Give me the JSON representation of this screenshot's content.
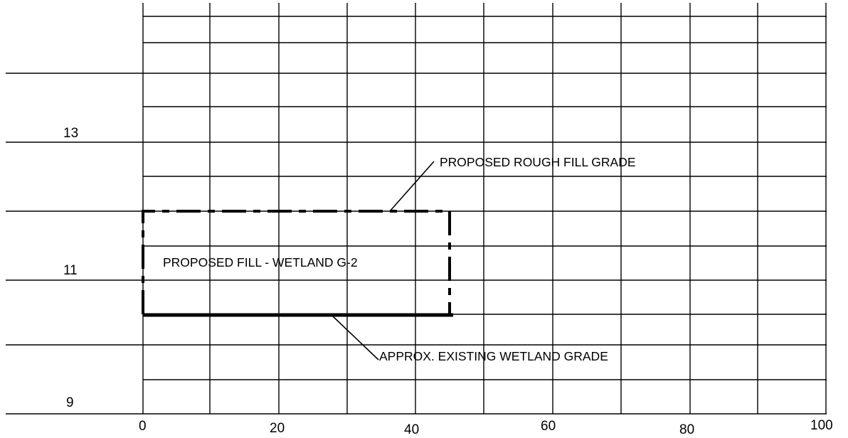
{
  "section": {
    "elevation_labels": [
      {
        "value": 13,
        "text": "13"
      },
      {
        "value": 11,
        "text": "11"
      },
      {
        "value": 9,
        "text": "9"
      }
    ],
    "station_labels": [
      {
        "value": 0,
        "text": "0"
      },
      {
        "value": 20,
        "text": "20"
      },
      {
        "value": 40,
        "text": "40"
      },
      {
        "value": 60,
        "text": "60"
      },
      {
        "value": 80,
        "text": "80"
      },
      {
        "value": 100,
        "text": "100"
      }
    ],
    "annotations": {
      "rough_fill_grade": "PROPOSED ROUGH FILL GRADE",
      "fill_area": "PROPOSED FILL - WETLAND G-2",
      "existing_grade": "APPROX. EXISTING WETLAND GRADE"
    },
    "fill_extent": {
      "station_start": 0,
      "station_end": 45,
      "top_elevation": 11.5,
      "bottom_elevation": 10.5
    }
  }
}
